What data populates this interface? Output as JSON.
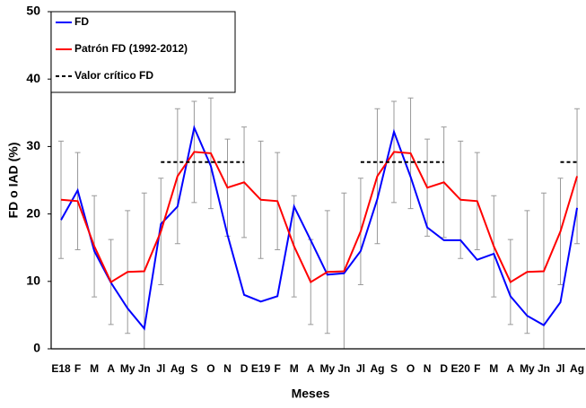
{
  "chart_data": {
    "type": "line",
    "x_label": "Meses",
    "y_label": "FD o IAD (%)",
    "categories": [
      "E18",
      "F",
      "M",
      "A",
      "My",
      "Jn",
      "Jl",
      "Ag",
      "S",
      "O",
      "N",
      "D",
      "E19",
      "F",
      "M",
      "A",
      "My",
      "Jn",
      "Jl",
      "Ag",
      "S",
      "O",
      "N",
      "D",
      "E20",
      "F",
      "M",
      "A",
      "My",
      "Jn",
      "Jl",
      "Ag"
    ],
    "ylim": [
      0,
      50
    ],
    "yticks": [
      0,
      10,
      20,
      30,
      40,
      50
    ],
    "legend": "upper left",
    "series": [
      {
        "name": "FD",
        "color": "#0000ff",
        "values": [
          19.1,
          23.5,
          14.5,
          9.8,
          6.0,
          3.0,
          18.5,
          21.1,
          32.8,
          27.1,
          16.9,
          8.0,
          7.0,
          7.8,
          21.1,
          16.1,
          11.0,
          11.2,
          14.5,
          22.2,
          32.2,
          25.5,
          18.0,
          16.1,
          16.1,
          13.2,
          14.1,
          7.8,
          4.9,
          3.5,
          6.9,
          20.9
        ]
      },
      {
        "name": "Patrón FD (1992-2012)",
        "color": "#ff0000",
        "error_color": "#999999",
        "values": [
          22.1,
          21.9,
          15.2,
          9.9,
          11.4,
          11.5,
          17.4,
          25.6,
          29.2,
          29.0,
          23.9,
          24.7,
          22.1,
          21.9,
          15.2,
          9.9,
          11.4,
          11.5,
          17.4,
          25.6,
          29.2,
          29.0,
          23.9,
          24.7,
          22.1,
          21.9,
          15.2,
          9.9,
          11.4,
          11.5,
          17.4,
          25.6
        ],
        "errors": [
          8.7,
          7.2,
          7.5,
          6.3,
          9.1,
          11.6,
          7.9,
          10.0,
          7.5,
          8.2,
          7.2,
          8.2,
          8.7,
          7.2,
          7.5,
          6.3,
          9.1,
          11.6,
          7.9,
          10.0,
          7.5,
          8.2,
          7.2,
          8.2,
          8.7,
          7.2,
          7.5,
          6.3,
          9.1,
          11.6,
          7.9,
          10.0
        ]
      },
      {
        "name": "Valor crítico FD",
        "color": "#000000",
        "dashed": true,
        "values": [
          null,
          null,
          null,
          null,
          null,
          null,
          27.7,
          27.7,
          27.7,
          27.7,
          27.7,
          27.7,
          null,
          null,
          null,
          null,
          null,
          null,
          27.7,
          27.7,
          27.7,
          27.7,
          27.7,
          27.7,
          null,
          null,
          null,
          null,
          null,
          null,
          27.7,
          27.7
        ]
      }
    ]
  }
}
